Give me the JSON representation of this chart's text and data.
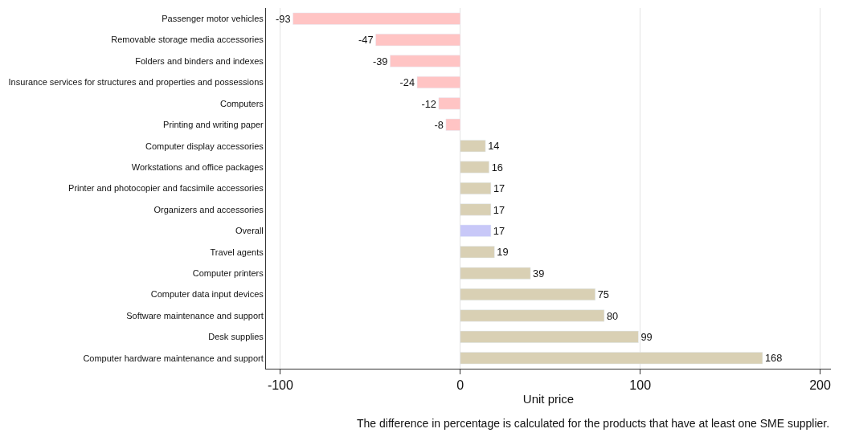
{
  "chart_data": {
    "type": "bar",
    "orientation": "horizontal",
    "xlabel": "Unit price",
    "categories": [
      "Passenger motor vehicles",
      "Removable storage media accessories",
      "Folders and binders and indexes",
      "Insurance services for structures and properties and possessions",
      "Computers",
      "Printing and writing paper",
      "Computer display accessories",
      "Workstations and office packages",
      "Printer and photocopier and facsimile accessories",
      "Organizers and accessories",
      "Overall",
      "Travel agents",
      "Computer printers",
      "Computer data input devices",
      "Software maintenance and support",
      "Desk supplies",
      "Computer hardware maintenance and support"
    ],
    "values": [
      -93,
      -47,
      -39,
      -24,
      -12,
      -8,
      14,
      16,
      17,
      17,
      17,
      19,
      39,
      75,
      80,
      99,
      168
    ],
    "colors": [
      "#ffc4c4",
      "#ffc4c4",
      "#ffc4c4",
      "#ffc4c4",
      "#ffc4c4",
      "#ffc4c4",
      "#d9d0b4",
      "#d9d0b4",
      "#d9d0b4",
      "#d9d0b4",
      "#c8c8f8",
      "#d9d0b4",
      "#d9d0b4",
      "#d9d0b4",
      "#d9d0b4",
      "#d9d0b4",
      "#d9d0b4"
    ],
    "xlim": [
      -108,
      206
    ],
    "xticks": [
      -100,
      0,
      100,
      200
    ],
    "grid": "x",
    "data_labels": true,
    "annotations": [
      "The difference in percentage is calculated for the products that have at least one SME supplier."
    ]
  }
}
